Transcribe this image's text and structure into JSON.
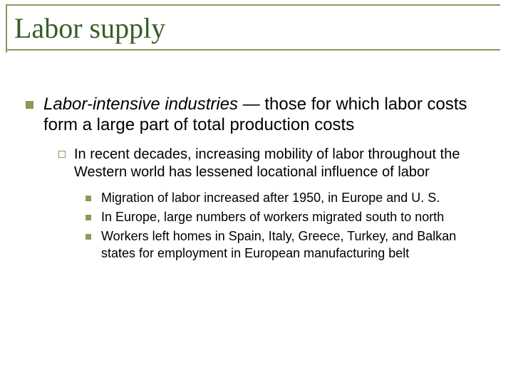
{
  "colors": {
    "title_text": "#385e24",
    "title_rule": "#8a9a5b",
    "bullet_filled": "#8a9a5b",
    "bullet_open_border": "#8a9a5b",
    "body_text": "#000000",
    "background": "#ffffff"
  },
  "title": "Labor supply",
  "level1": {
    "italic_lead": "Labor-intensive industries",
    "rest": " — those for which labor costs form a large part of total production costs"
  },
  "level2": {
    "text": "In recent decades, increasing mobility of labor throughout the Western world has lessened locational influence of labor"
  },
  "level3": [
    "Migration of labor increased after 1950, in Europe and U. S.",
    "In Europe, large numbers of workers migrated south to north",
    "Workers left homes in Spain, Italy, Greece, Turkey, and Balkan states for employment in European manufacturing belt"
  ],
  "typography": {
    "title_fontsize": 40,
    "lvl1_fontsize": 24,
    "lvl2_fontsize": 20,
    "lvl3_fontsize": 18
  }
}
